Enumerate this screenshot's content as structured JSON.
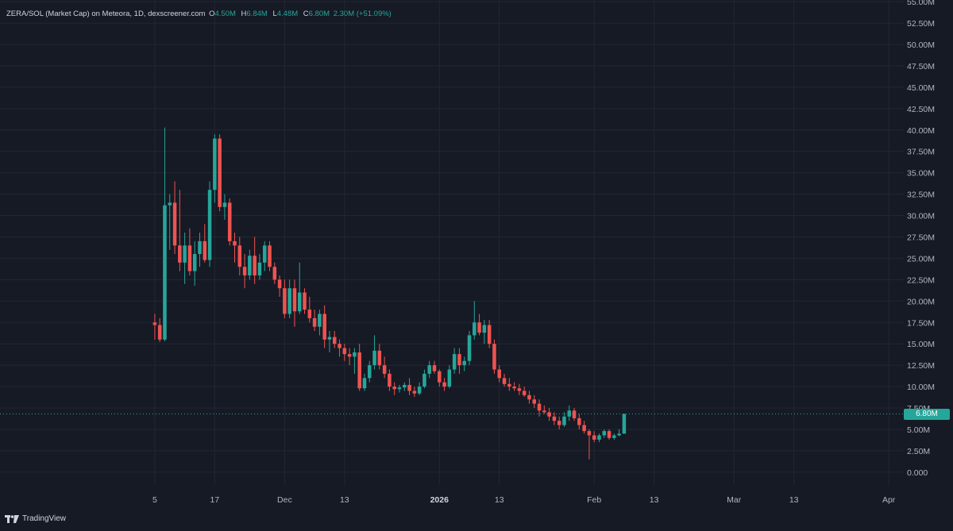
{
  "legend": {
    "pair": "ZERA/SOL (Market Cap) on Meteora, 1D, dexscreener.com",
    "o_label": "O",
    "o_value": "4.50M",
    "h_label": "H",
    "h_value": "6.84M",
    "l_label": "L",
    "l_value": "4.48M",
    "c_label": "C",
    "c_value": "6.80M",
    "change": "2.30M (+51.09%)"
  },
  "last_price_label": "6.80M",
  "brand": "TradingView",
  "colors": {
    "up": "#26a69a",
    "down": "#ef5350",
    "background": "#161a25",
    "grid": "#232734"
  },
  "chart_data": {
    "type": "candlestick",
    "unit": "M",
    "y_ticks": [
      "55.00M",
      "52.50M",
      "50.00M",
      "47.50M",
      "45.00M",
      "42.50M",
      "40.00M",
      "37.50M",
      "35.00M",
      "32.50M",
      "30.00M",
      "27.50M",
      "25.00M",
      "22.50M",
      "20.00M",
      "17.50M",
      "15.00M",
      "12.50M",
      "10.00M",
      "7.50M",
      "5.00M",
      "2.50M",
      "0.000"
    ],
    "y_tick_values": [
      55,
      52.5,
      50,
      47.5,
      45,
      42.5,
      40,
      37.5,
      35,
      32.5,
      30,
      27.5,
      25,
      22.5,
      20,
      17.5,
      15,
      12.5,
      10,
      7.5,
      5,
      2.5,
      0
    ],
    "x_ticks": [
      {
        "label": "5",
        "date": "2025-11-05"
      },
      {
        "label": "17",
        "date": "2025-11-17"
      },
      {
        "label": "Dec",
        "date": "2025-12-01"
      },
      {
        "label": "13",
        "date": "2025-12-13"
      },
      {
        "label": "2026",
        "date": "2026-01-01",
        "bold": true
      },
      {
        "label": "13",
        "date": "2026-01-13"
      },
      {
        "label": "Feb",
        "date": "2026-02-01"
      },
      {
        "label": "13",
        "date": "2026-02-13"
      },
      {
        "label": "Mar",
        "date": "2026-03-01"
      },
      {
        "label": "13",
        "date": "2026-03-13"
      },
      {
        "label": "Apr",
        "date": "2026-04-01"
      }
    ],
    "x_range": [
      "2025-10-05",
      "2026-04-04"
    ],
    "y_range": [
      -1.5,
      55.2
    ],
    "last_price": 6.8,
    "candles": [
      {
        "d": "2025-11-05",
        "o": 17.5,
        "h": 18.5,
        "l": 15.5,
        "c": 17.2
      },
      {
        "d": "2025-11-06",
        "o": 17.2,
        "h": 18.0,
        "l": 15.2,
        "c": 15.5
      },
      {
        "d": "2025-11-07",
        "o": 15.5,
        "h": 40.3,
        "l": 15.3,
        "c": 31.2
      },
      {
        "d": "2025-11-08",
        "o": 31.2,
        "h": 32.5,
        "l": 26.0,
        "c": 31.5
      },
      {
        "d": "2025-11-09",
        "o": 31.5,
        "h": 34.0,
        "l": 25.5,
        "c": 26.5
      },
      {
        "d": "2025-11-10",
        "o": 26.5,
        "h": 33.0,
        "l": 23.5,
        "c": 24.5
      },
      {
        "d": "2025-11-11",
        "o": 24.5,
        "h": 28.0,
        "l": 22.0,
        "c": 26.5
      },
      {
        "d": "2025-11-12",
        "o": 26.5,
        "h": 28.5,
        "l": 23.0,
        "c": 23.5
      },
      {
        "d": "2025-11-13",
        "o": 23.5,
        "h": 27.0,
        "l": 21.8,
        "c": 25.5
      },
      {
        "d": "2025-11-14",
        "o": 25.5,
        "h": 28.0,
        "l": 24.0,
        "c": 27.0
      },
      {
        "d": "2025-11-15",
        "o": 27.0,
        "h": 29.0,
        "l": 24.5,
        "c": 24.8
      },
      {
        "d": "2025-11-16",
        "o": 24.8,
        "h": 34.0,
        "l": 24.0,
        "c": 33.0
      },
      {
        "d": "2025-11-17",
        "o": 33.0,
        "h": 39.5,
        "l": 31.5,
        "c": 39.0
      },
      {
        "d": "2025-11-18",
        "o": 39.0,
        "h": 39.5,
        "l": 30.5,
        "c": 31.0
      },
      {
        "d": "2025-11-19",
        "o": 31.0,
        "h": 32.5,
        "l": 29.5,
        "c": 31.5
      },
      {
        "d": "2025-11-20",
        "o": 31.5,
        "h": 32.0,
        "l": 26.5,
        "c": 27.0
      },
      {
        "d": "2025-11-21",
        "o": 27.0,
        "h": 28.0,
        "l": 24.5,
        "c": 26.5
      },
      {
        "d": "2025-11-22",
        "o": 26.5,
        "h": 27.5,
        "l": 23.0,
        "c": 24.0
      },
      {
        "d": "2025-11-23",
        "o": 24.0,
        "h": 25.5,
        "l": 21.5,
        "c": 23.0
      },
      {
        "d": "2025-11-24",
        "o": 23.0,
        "h": 26.0,
        "l": 22.5,
        "c": 25.3
      },
      {
        "d": "2025-11-25",
        "o": 25.3,
        "h": 27.5,
        "l": 22.0,
        "c": 23.0
      },
      {
        "d": "2025-11-26",
        "o": 23.0,
        "h": 25.5,
        "l": 22.5,
        "c": 24.5
      },
      {
        "d": "2025-11-27",
        "o": 24.5,
        "h": 27.0,
        "l": 23.5,
        "c": 26.5
      },
      {
        "d": "2025-11-28",
        "o": 26.5,
        "h": 27.0,
        "l": 23.5,
        "c": 24.0
      },
      {
        "d": "2025-11-29",
        "o": 24.0,
        "h": 24.5,
        "l": 22.0,
        "c": 22.5
      },
      {
        "d": "2025-11-30",
        "o": 22.5,
        "h": 23.0,
        "l": 20.5,
        "c": 21.5
      },
      {
        "d": "2025-12-01",
        "o": 21.5,
        "h": 22.5,
        "l": 18.0,
        "c": 18.5
      },
      {
        "d": "2025-12-02",
        "o": 18.5,
        "h": 22.5,
        "l": 18.0,
        "c": 21.5
      },
      {
        "d": "2025-12-03",
        "o": 21.5,
        "h": 22.5,
        "l": 17.0,
        "c": 18.8
      },
      {
        "d": "2025-12-04",
        "o": 18.8,
        "h": 24.5,
        "l": 18.5,
        "c": 21.0
      },
      {
        "d": "2025-12-05",
        "o": 21.0,
        "h": 21.5,
        "l": 18.5,
        "c": 19.0
      },
      {
        "d": "2025-12-06",
        "o": 19.0,
        "h": 20.5,
        "l": 17.5,
        "c": 18.0
      },
      {
        "d": "2025-12-07",
        "o": 18.0,
        "h": 19.0,
        "l": 16.5,
        "c": 17.0
      },
      {
        "d": "2025-12-08",
        "o": 17.0,
        "h": 19.0,
        "l": 16.0,
        "c": 18.5
      },
      {
        "d": "2025-12-09",
        "o": 18.5,
        "h": 19.5,
        "l": 14.5,
        "c": 15.5
      },
      {
        "d": "2025-12-10",
        "o": 15.5,
        "h": 16.5,
        "l": 14.0,
        "c": 15.8
      },
      {
        "d": "2025-12-11",
        "o": 15.8,
        "h": 16.5,
        "l": 14.5,
        "c": 15.0
      },
      {
        "d": "2025-12-12",
        "o": 15.0,
        "h": 15.5,
        "l": 13.5,
        "c": 14.5
      },
      {
        "d": "2025-12-13",
        "o": 14.5,
        "h": 15.0,
        "l": 13.0,
        "c": 13.8
      },
      {
        "d": "2025-12-14",
        "o": 13.8,
        "h": 14.5,
        "l": 12.5,
        "c": 13.5
      },
      {
        "d": "2025-12-15",
        "o": 13.5,
        "h": 14.5,
        "l": 11.5,
        "c": 14.0
      },
      {
        "d": "2025-12-16",
        "o": 14.0,
        "h": 15.0,
        "l": 9.5,
        "c": 9.8
      },
      {
        "d": "2025-12-17",
        "o": 9.8,
        "h": 11.5,
        "l": 9.5,
        "c": 11.0
      },
      {
        "d": "2025-12-18",
        "o": 11.0,
        "h": 13.0,
        "l": 10.5,
        "c": 12.5
      },
      {
        "d": "2025-12-19",
        "o": 12.5,
        "h": 16.0,
        "l": 12.0,
        "c": 14.2
      },
      {
        "d": "2025-12-20",
        "o": 14.2,
        "h": 15.0,
        "l": 12.0,
        "c": 12.5
      },
      {
        "d": "2025-12-21",
        "o": 12.5,
        "h": 13.5,
        "l": 11.0,
        "c": 11.5
      },
      {
        "d": "2025-12-22",
        "o": 11.5,
        "h": 12.0,
        "l": 9.5,
        "c": 10.0
      },
      {
        "d": "2025-12-23",
        "o": 10.0,
        "h": 10.5,
        "l": 9.0,
        "c": 9.7
      },
      {
        "d": "2025-12-24",
        "o": 9.7,
        "h": 10.2,
        "l": 9.3,
        "c": 9.9
      },
      {
        "d": "2025-12-25",
        "o": 9.9,
        "h": 10.5,
        "l": 9.5,
        "c": 10.2
      },
      {
        "d": "2025-12-26",
        "o": 10.2,
        "h": 11.0,
        "l": 9.0,
        "c": 9.5
      },
      {
        "d": "2025-12-27",
        "o": 9.5,
        "h": 10.0,
        "l": 8.8,
        "c": 9.2
      },
      {
        "d": "2025-12-28",
        "o": 9.2,
        "h": 10.5,
        "l": 9.0,
        "c": 10.0
      },
      {
        "d": "2025-12-29",
        "o": 10.0,
        "h": 12.0,
        "l": 9.8,
        "c": 11.5
      },
      {
        "d": "2025-12-30",
        "o": 11.5,
        "h": 13.0,
        "l": 11.0,
        "c": 12.5
      },
      {
        "d": "2025-12-31",
        "o": 12.5,
        "h": 13.0,
        "l": 11.5,
        "c": 11.8
      },
      {
        "d": "2026-01-01",
        "o": 11.8,
        "h": 12.0,
        "l": 10.0,
        "c": 10.5
      },
      {
        "d": "2026-01-02",
        "o": 10.5,
        "h": 11.0,
        "l": 9.5,
        "c": 10.0
      },
      {
        "d": "2026-01-03",
        "o": 10.0,
        "h": 12.5,
        "l": 9.8,
        "c": 12.0
      },
      {
        "d": "2026-01-04",
        "o": 12.0,
        "h": 14.5,
        "l": 11.5,
        "c": 13.8
      },
      {
        "d": "2026-01-05",
        "o": 13.8,
        "h": 14.5,
        "l": 11.5,
        "c": 12.5
      },
      {
        "d": "2026-01-06",
        "o": 12.5,
        "h": 13.5,
        "l": 11.8,
        "c": 13.0
      },
      {
        "d": "2026-01-07",
        "o": 13.0,
        "h": 16.5,
        "l": 12.5,
        "c": 16.0
      },
      {
        "d": "2026-01-08",
        "o": 16.0,
        "h": 20.0,
        "l": 15.5,
        "c": 17.5
      },
      {
        "d": "2026-01-09",
        "o": 17.5,
        "h": 18.5,
        "l": 16.0,
        "c": 16.3
      },
      {
        "d": "2026-01-10",
        "o": 16.3,
        "h": 17.8,
        "l": 15.0,
        "c": 17.2
      },
      {
        "d": "2026-01-11",
        "o": 17.2,
        "h": 17.8,
        "l": 14.5,
        "c": 15.0
      },
      {
        "d": "2026-01-12",
        "o": 15.0,
        "h": 15.5,
        "l": 11.5,
        "c": 12.0
      },
      {
        "d": "2026-01-13",
        "o": 12.0,
        "h": 12.5,
        "l": 10.5,
        "c": 11.0
      },
      {
        "d": "2026-01-14",
        "o": 11.0,
        "h": 11.5,
        "l": 10.0,
        "c": 10.3
      },
      {
        "d": "2026-01-15",
        "o": 10.3,
        "h": 11.0,
        "l": 9.5,
        "c": 10.0
      },
      {
        "d": "2026-01-16",
        "o": 10.0,
        "h": 10.5,
        "l": 9.5,
        "c": 9.8
      },
      {
        "d": "2026-01-17",
        "o": 9.8,
        "h": 10.3,
        "l": 9.0,
        "c": 9.5
      },
      {
        "d": "2026-01-18",
        "o": 9.5,
        "h": 10.0,
        "l": 8.8,
        "c": 9.0
      },
      {
        "d": "2026-01-19",
        "o": 9.0,
        "h": 9.5,
        "l": 8.0,
        "c": 8.5
      },
      {
        "d": "2026-01-20",
        "o": 8.5,
        "h": 9.0,
        "l": 7.5,
        "c": 8.0
      },
      {
        "d": "2026-01-21",
        "o": 8.0,
        "h": 8.5,
        "l": 6.5,
        "c": 7.2
      },
      {
        "d": "2026-01-22",
        "o": 7.2,
        "h": 7.8,
        "l": 6.8,
        "c": 7.0
      },
      {
        "d": "2026-01-23",
        "o": 7.0,
        "h": 7.5,
        "l": 6.0,
        "c": 6.5
      },
      {
        "d": "2026-01-24",
        "o": 6.5,
        "h": 7.0,
        "l": 5.5,
        "c": 6.0
      },
      {
        "d": "2026-01-25",
        "o": 6.0,
        "h": 6.5,
        "l": 5.0,
        "c": 5.5
      },
      {
        "d": "2026-01-26",
        "o": 5.5,
        "h": 7.0,
        "l": 5.3,
        "c": 6.5
      },
      {
        "d": "2026-01-27",
        "o": 6.5,
        "h": 7.8,
        "l": 6.0,
        "c": 7.2
      },
      {
        "d": "2026-01-28",
        "o": 7.2,
        "h": 7.5,
        "l": 6.0,
        "c": 6.3
      },
      {
        "d": "2026-01-29",
        "o": 6.3,
        "h": 6.8,
        "l": 5.0,
        "c": 5.5
      },
      {
        "d": "2026-01-30",
        "o": 5.5,
        "h": 6.0,
        "l": 4.5,
        "c": 4.8
      },
      {
        "d": "2026-01-31",
        "o": 4.8,
        "h": 5.0,
        "l": 1.5,
        "c": 4.3
      },
      {
        "d": "2026-02-01",
        "o": 4.3,
        "h": 4.8,
        "l": 3.5,
        "c": 3.8
      },
      {
        "d": "2026-02-02",
        "o": 3.8,
        "h": 4.5,
        "l": 3.5,
        "c": 4.3
      },
      {
        "d": "2026-02-03",
        "o": 4.3,
        "h": 5.0,
        "l": 4.0,
        "c": 4.8
      },
      {
        "d": "2026-02-04",
        "o": 4.8,
        "h": 5.0,
        "l": 3.8,
        "c": 4.0
      },
      {
        "d": "2026-02-05",
        "o": 4.0,
        "h": 4.5,
        "l": 3.8,
        "c": 4.3
      },
      {
        "d": "2026-02-06",
        "o": 4.3,
        "h": 5.0,
        "l": 4.2,
        "c": 4.5
      },
      {
        "d": "2026-02-07",
        "o": 4.5,
        "h": 6.84,
        "l": 4.48,
        "c": 6.8
      }
    ]
  }
}
